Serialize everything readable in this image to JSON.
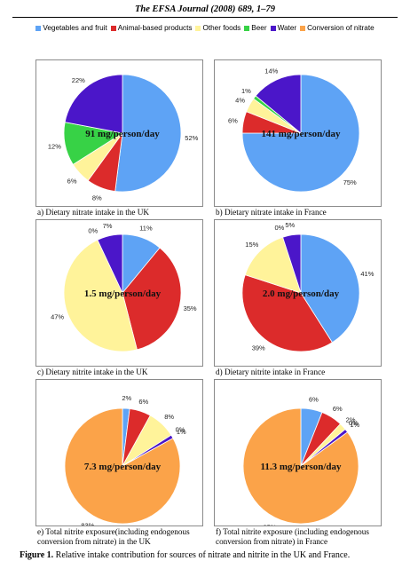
{
  "header": "The EFSA Journal (2008) 689, 1–79",
  "legend": [
    {
      "label": "Vegetables and fruit",
      "color": "#5ea3f5"
    },
    {
      "label": "Animal-based products",
      "color": "#dc2b2b"
    },
    {
      "label": "Other foods",
      "color": "#fff39a"
    },
    {
      "label": "Beer",
      "color": "#37d246"
    },
    {
      "label": "Water",
      "color": "#4b16c9"
    },
    {
      "label": "Conversion of nitrate",
      "color": "#fba349"
    }
  ],
  "chart_data": [
    {
      "type": "pie",
      "center_label": "91 mg/person/day",
      "caption": "a) Dietary nitrate intake in the UK",
      "slices": [
        {
          "category": "Vegetables and fruit",
          "value": 52,
          "label": "52%"
        },
        {
          "category": "Animal-based products",
          "value": 8,
          "label": "8%"
        },
        {
          "category": "Other foods",
          "value": 6,
          "label": "6%"
        },
        {
          "category": "Beer",
          "value": 12,
          "label": "12%"
        },
        {
          "category": "Water",
          "value": 22,
          "label": "22%"
        }
      ]
    },
    {
      "type": "pie",
      "center_label": "141 mg/person/day",
      "caption": "b) Dietary nitrate intake in France",
      "slices": [
        {
          "category": "Vegetables and fruit",
          "value": 75,
          "label": "75%"
        },
        {
          "category": "Animal-based products",
          "value": 6,
          "label": "6%"
        },
        {
          "category": "Other foods",
          "value": 4,
          "label": "4%"
        },
        {
          "category": "Beer",
          "value": 1,
          "label": "1%"
        },
        {
          "category": "Water",
          "value": 14,
          "label": "14%"
        }
      ]
    },
    {
      "type": "pie",
      "center_label": "1.5 mg/person/day",
      "caption": "c) Dietary nitrite intake in the UK",
      "slices": [
        {
          "category": "Vegetables and fruit",
          "value": 11,
          "label": "11%"
        },
        {
          "category": "Animal-based products",
          "value": 35,
          "label": "35%"
        },
        {
          "category": "Other foods",
          "value": 47,
          "label": "47%"
        },
        {
          "category": "Beer",
          "value": 0,
          "label": "0%"
        },
        {
          "category": "Water",
          "value": 7,
          "label": "7%"
        }
      ]
    },
    {
      "type": "pie",
      "center_label": "2.0 mg/person/day",
      "caption": "d) Dietary nitrite intake in France",
      "slices": [
        {
          "category": "Vegetables and fruit",
          "value": 41,
          "label": "41%"
        },
        {
          "category": "Animal-based products",
          "value": 39,
          "label": "39%"
        },
        {
          "category": "Other foods",
          "value": 15,
          "label": "15%"
        },
        {
          "category": "Beer",
          "value": 0,
          "label": "0%"
        },
        {
          "category": "Water",
          "value": 5,
          "label": "5%"
        }
      ]
    },
    {
      "type": "pie",
      "center_label": "7.3 mg/person/day",
      "caption": "e) Total nitrite exposure(including endogenous conversion from nitrate) in the UK",
      "slices": [
        {
          "category": "Vegetables and fruit",
          "value": 2,
          "label": "2%"
        },
        {
          "category": "Animal-based products",
          "value": 6,
          "label": "6%"
        },
        {
          "category": "Other foods",
          "value": 8,
          "label": "8%"
        },
        {
          "category": "Beer",
          "value": 0,
          "label": "0%"
        },
        {
          "category": "Water",
          "value": 1,
          "label": "1%"
        },
        {
          "category": "Conversion of nitrate",
          "value": 83,
          "label": "83%"
        }
      ]
    },
    {
      "type": "pie",
      "center_label": "11.3 mg/person/day",
      "caption": "f) Total nitrite exposure (including endogenous conversion from nitrate)  in France",
      "slices": [
        {
          "category": "Vegetables and fruit",
          "value": 6,
          "label": "6%"
        },
        {
          "category": "Animal-based products",
          "value": 6,
          "label": "6%"
        },
        {
          "category": "Other foods",
          "value": 2,
          "label": "2%"
        },
        {
          "category": "Beer",
          "value": 0,
          "label": "0%"
        },
        {
          "category": "Water",
          "value": 1,
          "label": "1%"
        },
        {
          "category": "Conversion of nitrate",
          "value": 85,
          "label": "85%"
        }
      ]
    }
  ],
  "figure_caption": {
    "prefix": "Figure 1.",
    "text": " Relative intake contribution for sources of nitrate and nitrite in the UK and France."
  }
}
